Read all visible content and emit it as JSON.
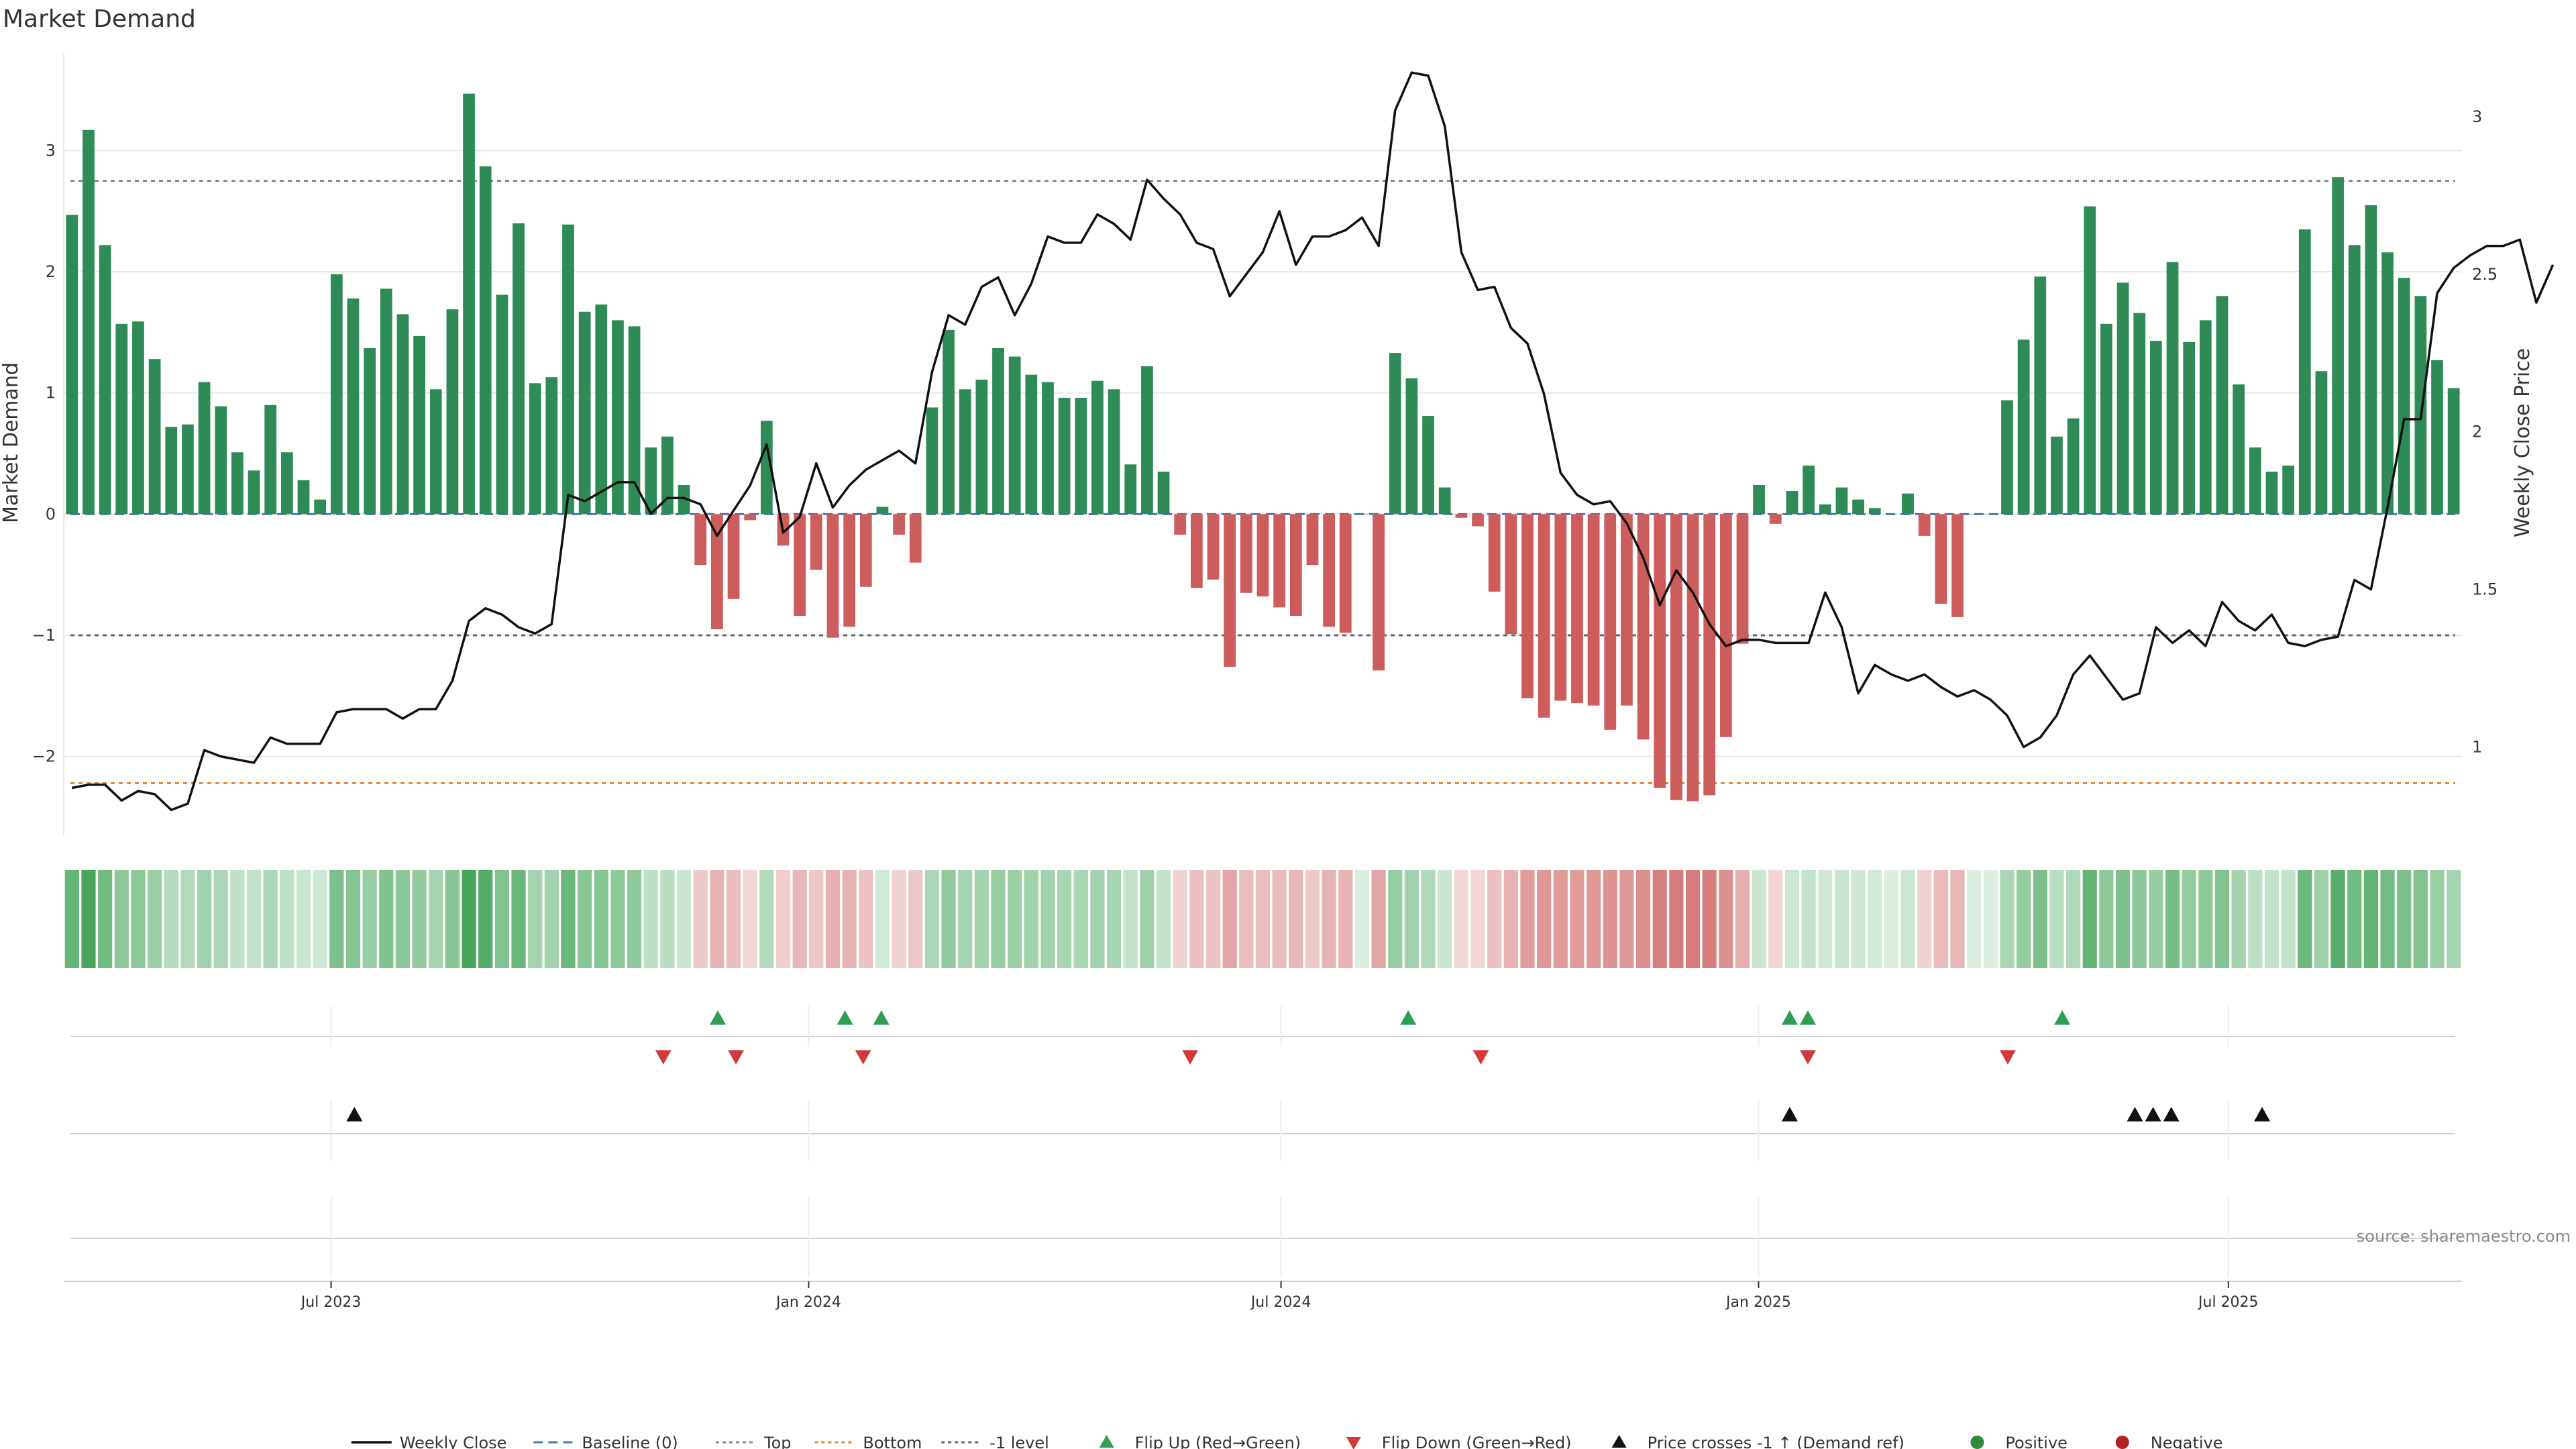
{
  "chart_data": {
    "type": "bar",
    "title": "Market Demand",
    "ylabel": "Market Demand",
    "y2label": "Weekly Close Price",
    "source": "source: sharemaestro.com",
    "ylim": [
      -2.65,
      3.8
    ],
    "y2lim": [
      0.72,
      3.2
    ],
    "yticks": [
      -2,
      -1,
      0,
      1,
      2,
      3
    ],
    "yticklabels": [
      "−2",
      "−1",
      "0",
      "1",
      "2",
      "3"
    ],
    "y2ticks": [
      1,
      1.5,
      2,
      2.5,
      3
    ],
    "y2ticklabels": [
      "1",
      "1.5",
      "2",
      "2.5",
      "3"
    ],
    "x_start": "2023-03-20",
    "x_end": "2025-09-29",
    "xticks": [
      "2023-07-01",
      "2024-01-01",
      "2024-07-01",
      "2025-01-01",
      "2025-07-01"
    ],
    "xticklabels": [
      "Jul 2023",
      "Jan 2024",
      "Jul 2024",
      "Jan 2025",
      "Jul 2025"
    ],
    "reference_lines": {
      "top": 2.75,
      "bottom": -2.22,
      "minus_one": -1,
      "baseline": 0
    },
    "series": [
      {
        "name": "Market Demand",
        "start_date": "2023-03-20",
        "frequency": "weekly",
        "values": [
          2.47,
          3.17,
          2.22,
          1.57,
          1.59,
          1.28,
          0.72,
          0.74,
          1.09,
          0.89,
          0.51,
          0.36,
          0.9,
          0.51,
          0.28,
          0.12,
          1.98,
          1.78,
          1.37,
          1.86,
          1.65,
          1.47,
          1.03,
          1.69,
          3.47,
          2.87,
          1.81,
          2.4,
          1.08,
          1.13,
          2.39,
          1.67,
          1.73,
          1.6,
          1.55,
          0.55,
          0.64,
          0.24,
          -0.42,
          -0.95,
          -0.7,
          -0.05,
          0.77,
          -0.26,
          -0.84,
          -0.46,
          -1.02,
          -0.93,
          -0.6,
          0.06,
          -0.17,
          -0.4,
          0.88,
          1.52,
          1.03,
          1.11,
          1.37,
          1.3,
          1.15,
          1.09,
          0.96,
          0.96,
          1.1,
          1.03,
          0.41,
          1.22,
          0.35,
          -0.17,
          -0.61,
          -0.54,
          -1.26,
          -0.65,
          -0.68,
          -0.77,
          -0.84,
          -0.42,
          -0.93,
          -0.98,
          0.0,
          -1.29,
          1.33,
          1.12,
          0.81,
          0.22,
          -0.03,
          -0.1,
          -0.64,
          -0.99,
          -1.52,
          -1.68,
          -1.54,
          -1.56,
          -1.58,
          -1.78,
          -1.58,
          -1.86,
          -2.26,
          -2.36,
          -2.37,
          -2.32,
          -1.84,
          -1.07,
          0.24,
          -0.08,
          0.19,
          0.4,
          0.08,
          0.22,
          0.12,
          0.05,
          0.0,
          0.17,
          -0.18,
          -0.74,
          -0.85,
          0.0,
          0.0,
          0.94,
          1.44,
          1.96,
          0.64,
          0.79,
          2.54,
          1.57,
          1.91,
          1.66,
          1.43,
          2.08,
          1.42,
          1.6,
          1.8,
          1.07,
          0.55,
          0.35,
          0.4,
          2.35,
          1.18,
          2.78,
          2.22,
          2.55,
          2.16,
          1.95,
          1.8,
          1.27,
          1.04
        ]
      },
      {
        "name": "Weekly Close",
        "axis": "right",
        "values": [
          0.87,
          0.88,
          0.88,
          0.83,
          0.86,
          0.85,
          0.8,
          0.82,
          0.99,
          0.97,
          0.96,
          0.95,
          1.03,
          1.01,
          1.01,
          1.01,
          1.11,
          1.12,
          1.12,
          1.12,
          1.09,
          1.12,
          1.12,
          1.21,
          1.4,
          1.44,
          1.42,
          1.38,
          1.36,
          1.39,
          1.8,
          1.78,
          1.81,
          1.84,
          1.84,
          1.74,
          1.79,
          1.79,
          1.77,
          1.67,
          1.75,
          1.83,
          1.96,
          1.68,
          1.73,
          1.9,
          1.76,
          1.83,
          1.88,
          1.91,
          1.94,
          1.9,
          2.19,
          2.37,
          2.34,
          2.46,
          2.49,
          2.37,
          2.47,
          2.62,
          2.6,
          2.6,
          2.69,
          2.66,
          2.61,
          2.8,
          2.74,
          2.69,
          2.6,
          2.58,
          2.43,
          2.5,
          2.57,
          2.7,
          2.53,
          2.62,
          2.62,
          2.64,
          2.68,
          2.59,
          3.02,
          3.14,
          3.13,
          2.97,
          2.57,
          2.45,
          2.46,
          2.33,
          2.28,
          2.12,
          1.87,
          1.8,
          1.77,
          1.78,
          1.71,
          1.6,
          1.45,
          1.56,
          1.49,
          1.39,
          1.32,
          1.34,
          1.34,
          1.33,
          1.33,
          1.33,
          1.49,
          1.38,
          1.17,
          1.26,
          1.23,
          1.21,
          1.23,
          1.19,
          1.16,
          1.18,
          1.15,
          1.1,
          1.0,
          1.03,
          1.1,
          1.23,
          1.29,
          1.22,
          1.15,
          1.17,
          1.38,
          1.33,
          1.37,
          1.32,
          1.46,
          1.4,
          1.37,
          1.42,
          1.33,
          1.32,
          1.34,
          1.35,
          1.53,
          1.5,
          1.76,
          2.04,
          2.04,
          2.44,
          2.52,
          2.56,
          2.59,
          2.59,
          2.61,
          2.41,
          2.53
        ]
      }
    ],
    "heat_strip": "one cell per week, green for positive demand and red for negative, shade by magnitude",
    "flip_up_dates": [
      "2023-11-27",
      "2024-01-15",
      "2024-01-29",
      "2024-08-19",
      "2025-01-13",
      "2025-01-20",
      "2025-04-28"
    ],
    "flip_down_dates": [
      "2023-11-06",
      "2023-12-04",
      "2024-01-22",
      "2024-05-27",
      "2024-09-16",
      "2025-01-20",
      "2025-04-07"
    ],
    "price_cross_dates": [
      "2023-07-10",
      "2025-01-13",
      "2025-05-26",
      "2025-06-02",
      "2025-06-09",
      "2025-07-14"
    ],
    "legend": [
      {
        "label": "Weekly Close",
        "marker": "line",
        "color": "#111111"
      },
      {
        "label": "Baseline (0)",
        "marker": "dashed",
        "color": "#4a78b0"
      },
      {
        "label": "Top",
        "marker": "dotted",
        "color": "#888888"
      },
      {
        "label": "Bottom",
        "marker": "dotted",
        "color": "#e08a2c"
      },
      {
        "label": "-1 level",
        "marker": "dotted",
        "color": "#666666"
      },
      {
        "label": "Flip Up (Red→Green)",
        "marker": "triangle-up",
        "color": "#2e9e4f"
      },
      {
        "label": "Flip Down (Green→Red)",
        "marker": "triangle-down",
        "color": "#d23a3a"
      },
      {
        "label": "Price crosses -1 ↑ (Demand ref)",
        "marker": "triangle-up",
        "color": "#111111"
      },
      {
        "label": "Positive",
        "marker": "circle",
        "color": "#2e8b3a"
      },
      {
        "label": "Negative",
        "marker": "circle",
        "color": "#b22222"
      }
    ],
    "colors": {
      "positive_bar": "#2e8b57",
      "negative_bar": "#cd5c5c",
      "price_line": "#111111",
      "baseline": "#4a78b0",
      "top_line": "#888888",
      "bottom_line": "#e08a2c",
      "minus_one_line": "#666666",
      "flip_up": "#2e9e4f",
      "flip_down": "#d23a3a",
      "price_cross": "#111111",
      "grid": "#e8e8e8"
    },
    "grid": true,
    "legend_position": "bottom"
  }
}
